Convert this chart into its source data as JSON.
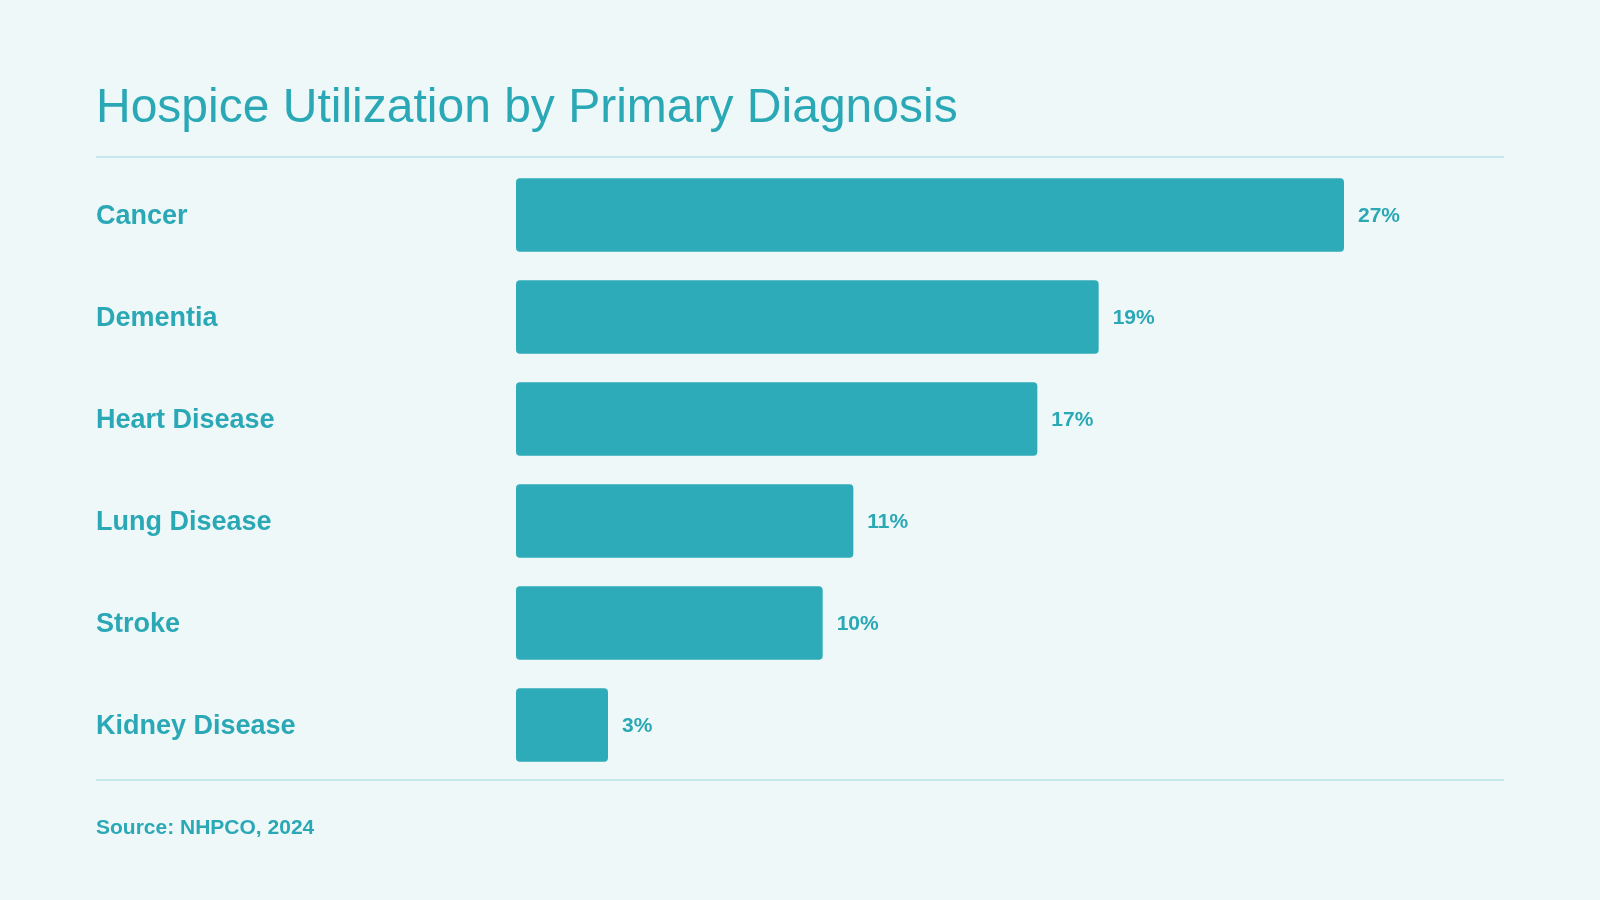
{
  "chart_data": {
    "type": "bar",
    "orientation": "horizontal",
    "title": "Hospice Utilization by Primary Diagnosis",
    "categories": [
      "Cancer",
      "Dementia",
      "Heart Disease",
      "Lung Disease",
      "Stroke",
      "Kidney Disease"
    ],
    "values": [
      27,
      19,
      17,
      11,
      10,
      3
    ],
    "color": "#2eabb9",
    "value_labels": [
      "27%",
      "19%",
      "17%",
      "11%",
      "10%",
      "3%"
    ],
    "annotations": [
      "Source: NHPCO, 2024"
    ]
  }
}
